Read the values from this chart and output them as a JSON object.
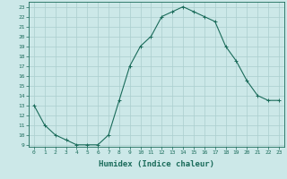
{
  "x": [
    0,
    1,
    2,
    3,
    4,
    5,
    6,
    7,
    8,
    9,
    10,
    11,
    12,
    13,
    14,
    15,
    16,
    17,
    18,
    19,
    20,
    21,
    22,
    23
  ],
  "y": [
    13,
    11,
    10,
    9.5,
    9,
    9,
    9,
    10,
    13.5,
    17,
    19,
    20,
    22,
    22.5,
    23,
    22.5,
    22,
    21.5,
    19,
    17.5,
    15.5,
    14,
    13.5,
    13.5
  ],
  "line_color": "#1a6b5a",
  "marker": "+",
  "marker_size": 3,
  "bg_color": "#cce8e8",
  "grid_color": "#aacece",
  "xlabel": "Humidex (Indice chaleur)",
  "xlim": [
    -0.5,
    23.5
  ],
  "ylim": [
    9,
    23.5
  ],
  "yticks": [
    9,
    10,
    11,
    12,
    13,
    14,
    15,
    16,
    17,
    18,
    19,
    20,
    21,
    22,
    23
  ],
  "xticks": [
    0,
    1,
    2,
    3,
    4,
    5,
    6,
    7,
    8,
    9,
    10,
    11,
    12,
    13,
    14,
    15,
    16,
    17,
    18,
    19,
    20,
    21,
    22,
    23
  ],
  "tick_fontsize": 4.5,
  "label_fontsize": 6.5
}
